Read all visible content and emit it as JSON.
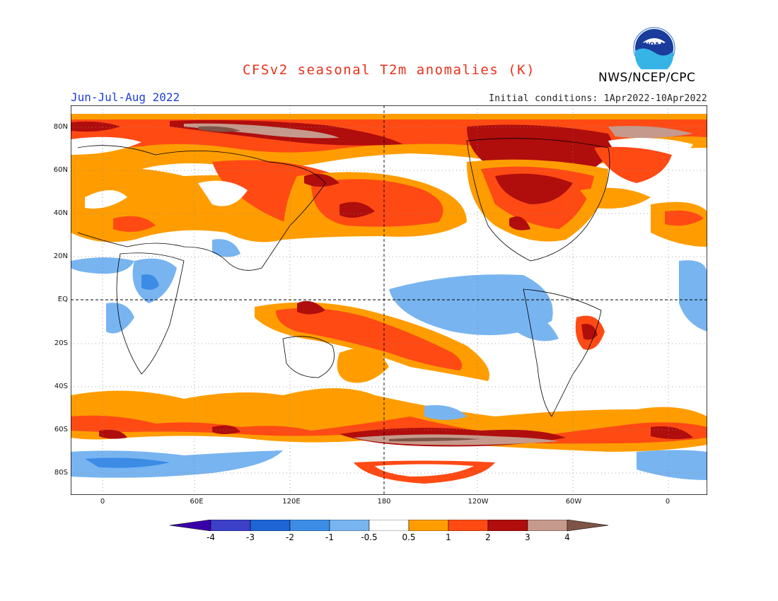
{
  "header": {
    "title": "CFSv2 seasonal T2m anomalies (K)",
    "organization": "NWS/NCEP/CPC",
    "logo_text": "NOAA",
    "period": "Jun-Jul-Aug 2022",
    "initial_conditions": "Initial conditions: 1Apr2022-10Apr2022"
  },
  "map": {
    "lat_labels": [
      "80N",
      "60N",
      "40N",
      "20N",
      "EQ",
      "20S",
      "40S",
      "60S",
      "80S"
    ],
    "lon_labels": [
      "0",
      "60E",
      "120E",
      "180",
      "120W",
      "60W",
      "0"
    ]
  },
  "colorbar": {
    "labels": [
      "-4",
      "-3",
      "-2",
      "-1",
      "-0.5",
      "0.5",
      "1",
      "2",
      "3",
      "4"
    ],
    "colors": [
      "#3a00a8",
      "#3c3fc8",
      "#1e64d4",
      "#3c8ce6",
      "#78b4f0",
      "#ffffff",
      "#ff9d00",
      "#ff4a14",
      "#b00d0d",
      "#c59a8c",
      "#7d5447"
    ]
  }
}
